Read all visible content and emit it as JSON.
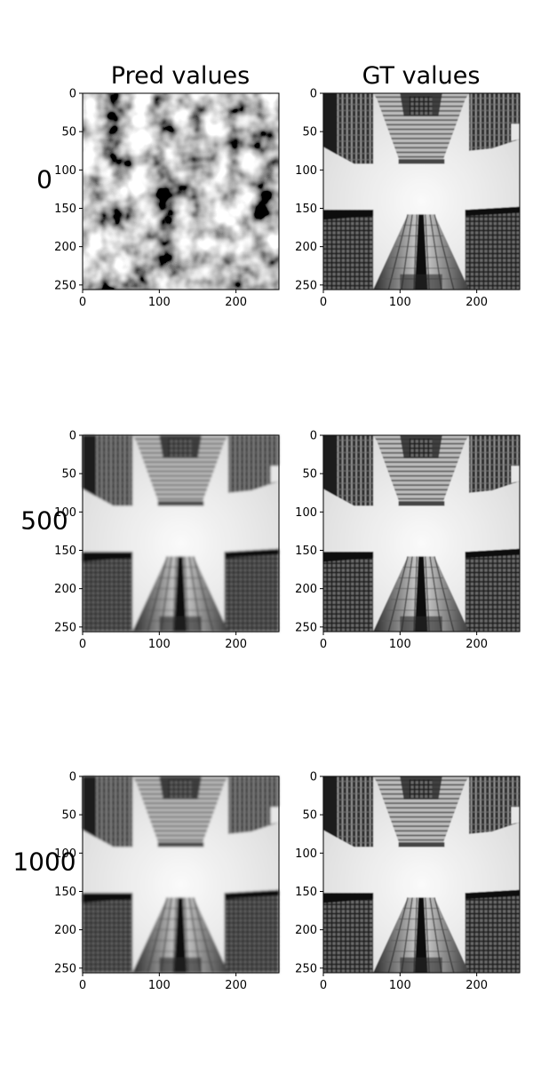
{
  "figure": {
    "columns": [
      "Pred values",
      "GT values"
    ],
    "rows": [
      "0",
      "500",
      "1000"
    ]
  },
  "chart_data": [
    {
      "type": "heatmap",
      "panel": "row-0-pred",
      "row_label": "0",
      "title": "Pred values",
      "xlim": [
        0,
        256
      ],
      "ylim": [
        256,
        0
      ],
      "xticks": [
        0,
        100,
        200
      ],
      "yticks": [
        0,
        50,
        100,
        150,
        200,
        250
      ],
      "content": "noise"
    },
    {
      "type": "heatmap",
      "panel": "row-0-gt",
      "row_label": "0",
      "title": "GT values",
      "xlim": [
        0,
        256
      ],
      "ylim": [
        256,
        0
      ],
      "xticks": [
        0,
        100,
        200
      ],
      "yticks": [
        0,
        50,
        100,
        150,
        200,
        250
      ],
      "content": "buildings"
    },
    {
      "type": "heatmap",
      "panel": "row-500-pred",
      "row_label": "500",
      "title": "Pred values",
      "xlim": [
        0,
        256
      ],
      "ylim": [
        256,
        0
      ],
      "xticks": [
        0,
        100,
        200
      ],
      "yticks": [
        0,
        50,
        100,
        150,
        200,
        250
      ],
      "content": "buildings"
    },
    {
      "type": "heatmap",
      "panel": "row-500-gt",
      "row_label": "500",
      "title": "GT values",
      "xlim": [
        0,
        256
      ],
      "ylim": [
        256,
        0
      ],
      "xticks": [
        0,
        100,
        200
      ],
      "yticks": [
        0,
        50,
        100,
        150,
        200,
        250
      ],
      "content": "buildings"
    },
    {
      "type": "heatmap",
      "panel": "row-1000-pred",
      "row_label": "1000",
      "title": "Pred values",
      "xlim": [
        0,
        256
      ],
      "ylim": [
        256,
        0
      ],
      "xticks": [
        0,
        100,
        200
      ],
      "yticks": [
        0,
        50,
        100,
        150,
        200,
        250
      ],
      "content": "buildings"
    },
    {
      "type": "heatmap",
      "panel": "row-1000-gt",
      "row_label": "1000",
      "title": "GT values",
      "xlim": [
        0,
        256
      ],
      "ylim": [
        256,
        0
      ],
      "xticks": [
        0,
        100,
        200
      ],
      "yticks": [
        0,
        50,
        100,
        150,
        200,
        250
      ],
      "content": "buildings"
    }
  ]
}
